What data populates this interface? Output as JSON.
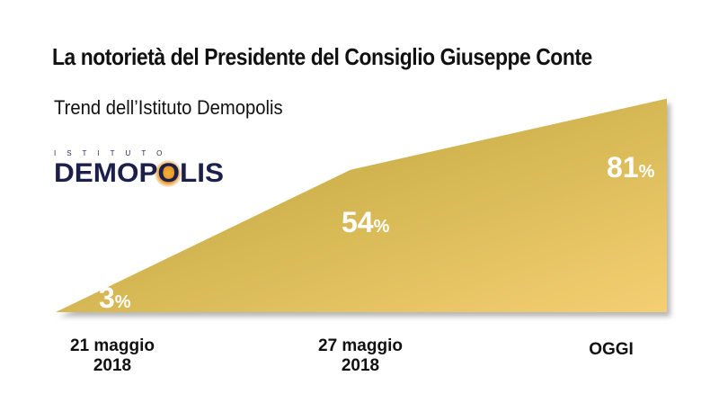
{
  "chart_data": {
    "type": "area",
    "title": "La notorietà del Presidente del Consiglio Giuseppe Conte",
    "subtitle": "Trend dell’Istituto Demopolis",
    "categories": [
      "21 maggio\n2018",
      "27 maggio\n2018",
      "OGGI"
    ],
    "values": [
      3,
      54,
      81
    ],
    "value_suffix": "%",
    "ylim": [
      0,
      100
    ],
    "xlabel": "",
    "ylabel": "",
    "grid": false,
    "colors": {
      "fill_start": "#b5a036",
      "fill_end": "#f5cf72",
      "shadow": "#bbbbbb",
      "label": "#ffffff"
    }
  },
  "logo": {
    "small": "ISTITUTO",
    "main": "DEMOPOLIS"
  }
}
